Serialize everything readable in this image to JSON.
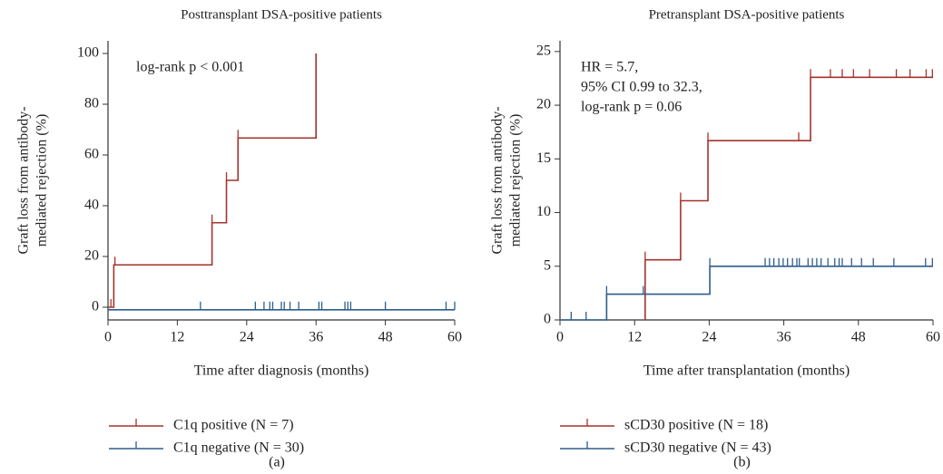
{
  "chart_data": [
    {
      "type": "step",
      "title": "Posttransplant DSA-positive patients",
      "ylabel": [
        "Graft loss from antibody-",
        "mediated rejection (%)"
      ],
      "xlabel": "Time after diagnosis (months)",
      "annotation": [
        "log-rank p < 0.001"
      ],
      "panel": "(a)",
      "xlim": [
        0,
        60
      ],
      "xticks": [
        0,
        12,
        24,
        36,
        48,
        60
      ],
      "ylim": [
        -5,
        105
      ],
      "yticks": [
        0,
        20,
        40,
        60,
        80,
        100
      ],
      "series": [
        {
          "name": "C1q positive (N = 7)",
          "color": "#a3332c",
          "x": [
            0,
            1,
            18,
            20.5,
            22.5,
            36
          ],
          "values": [
            0,
            16.7,
            33.3,
            50,
            66.7,
            100
          ],
          "censored_x": [
            0.5,
            1.2,
            18,
            20.5,
            22.5,
            36
          ],
          "censored_values": [
            0,
            16.7,
            33.3,
            50,
            66.7,
            66.7
          ]
        },
        {
          "name": "C1q negative (N = 30)",
          "color": "#2f5d8c",
          "x": [
            0,
            60
          ],
          "values": [
            -1,
            -1
          ],
          "censored_x": [
            16,
            25.5,
            27,
            28,
            28.5,
            30,
            30.5,
            31.5,
            33,
            36.5,
            37,
            41,
            41.5,
            42,
            48,
            58.5,
            60
          ],
          "censored_values": [
            -1,
            -1,
            -1,
            -1,
            -1,
            -1,
            -1,
            -1,
            -1,
            -1,
            -1,
            -1,
            -1,
            -1,
            -1,
            -1,
            -1
          ]
        }
      ]
    },
    {
      "type": "step",
      "title": "Pretransplant DSA-positive patients",
      "ylabel": [
        "Graft loss from antibody-",
        "mediated rejection (%)"
      ],
      "xlabel": "Time after transplantation (months)",
      "annotation": [
        "HR = 5.7,",
        "95% CI 0.99 to 32.3,",
        "log-rank p = 0.06"
      ],
      "panel": "(b)",
      "xlim": [
        0,
        60
      ],
      "xticks": [
        0,
        12,
        24,
        36,
        48,
        60
      ],
      "ylim": [
        0,
        26
      ],
      "yticks": [
        0,
        5,
        10,
        15,
        20,
        25
      ],
      "series": [
        {
          "name": "sCD30 positive (N = 18)",
          "color": "#a3332c",
          "x": [
            13.7,
            13.7,
            19.4,
            23.8,
            40.3,
            60
          ],
          "values": [
            0,
            5.6,
            11.1,
            16.7,
            22.6,
            22.6
          ],
          "censored_x": [
            13.7,
            19.4,
            23.8,
            38.4,
            40.3,
            43.5,
            45.4,
            47.2,
            49.8,
            54.1,
            56.3,
            58.9,
            59.9
          ],
          "censored_values": [
            5.6,
            11.1,
            16.7,
            16.7,
            22.6,
            22.6,
            22.6,
            22.6,
            22.6,
            22.6,
            22.6,
            22.6,
            22.6
          ]
        },
        {
          "name": "sCD30 negative (N = 43)",
          "color": "#2f5d8c",
          "x": [
            0,
            7.5,
            24.1,
            60
          ],
          "values": [
            0,
            2.4,
            5,
            5
          ],
          "censored_x": [
            1.8,
            4.2,
            7.5,
            13.4,
            24.1,
            33,
            33.7,
            34.4,
            35.2,
            35.9,
            36.6,
            37.4,
            38.1,
            38.5,
            39.9,
            40.6,
            41.3,
            42,
            43.1,
            44.2,
            44.9,
            45.4,
            46.9,
            48.5,
            50.4,
            53.7,
            58.8,
            59.9
          ],
          "censored_values": [
            0,
            0,
            2.4,
            2.4,
            5,
            5,
            5,
            5,
            5,
            5,
            5,
            5,
            5,
            5,
            5,
            5,
            5,
            5,
            5,
            5,
            5,
            5,
            5,
            5,
            5,
            5,
            5,
            5
          ]
        }
      ]
    }
  ]
}
